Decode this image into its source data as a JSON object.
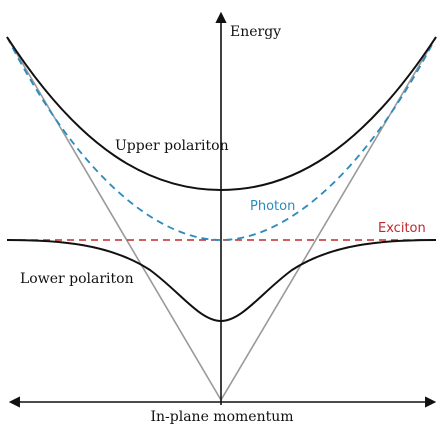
{
  "labels": {
    "y_axis": "Energy",
    "x_axis": "In-plane momentum",
    "upper": "Upper polariton",
    "lower": "Lower polariton",
    "photon": "Photon",
    "exciton": "Exciton"
  },
  "colors": {
    "axis": "#111111",
    "polariton": "#111111",
    "photon": "#2b8bbf",
    "exciton": "#c0282d",
    "light_cone": "#9a9a9a"
  }
}
